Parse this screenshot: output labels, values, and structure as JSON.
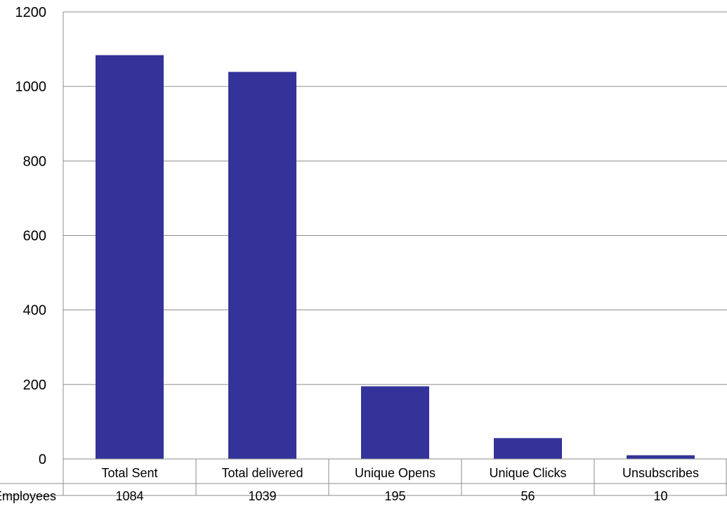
{
  "chart_data": {
    "type": "bar",
    "categories": [
      "Total Sent",
      "Total delivered",
      "Unique Opens",
      "Unique Clicks",
      "Unsubscribes"
    ],
    "series": [
      {
        "name": "Employees",
        "values": [
          1084,
          1039,
          195,
          56,
          10
        ]
      }
    ],
    "data_table": {
      "row_label": "Employees",
      "cells": [
        "1084",
        "1039",
        "195",
        "56",
        "10"
      ]
    },
    "yticks": [
      "0",
      "200",
      "400",
      "600",
      "800",
      "1000",
      "1200"
    ],
    "ylim": [
      0,
      1200
    ],
    "grid": true,
    "legend": "none",
    "bar_color": "#333399",
    "title": "",
    "xlabel": "",
    "ylabel": ""
  }
}
